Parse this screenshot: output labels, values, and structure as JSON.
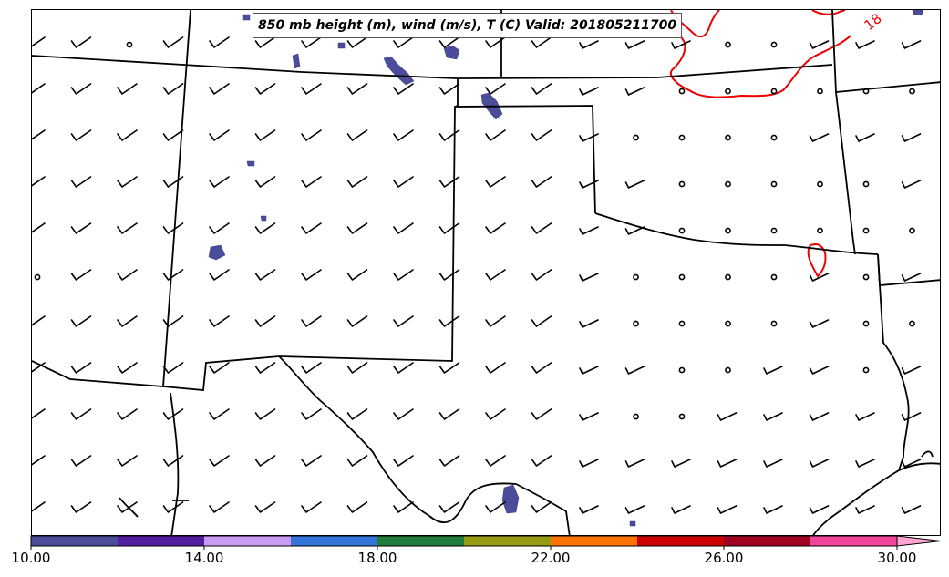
{
  "title": "850 mb height (m), wind (m/s), T (C) Valid: 201805211700",
  "contours": [
    {
      "value_label": "18",
      "color": "#ee0000",
      "variable": "temperature_C"
    }
  ],
  "colorbar": {
    "min": 10.0,
    "max": 30.0,
    "extend": "max",
    "tick_labels": [
      "10.00",
      "14.00",
      "18.00",
      "22.00",
      "26.00",
      "30.00"
    ],
    "colors": [
      "#4b4d9a",
      "#531ea0",
      "#c89bf5",
      "#3575db",
      "#1e7d3c",
      "#969b16",
      "#ff7300",
      "#cd0000",
      "#a10022",
      "#f0479d",
      "#ffa5d2"
    ]
  },
  "icons": {
    "wind": "wind-barb-icon",
    "calm": "calm-wind-circle-icon"
  }
}
